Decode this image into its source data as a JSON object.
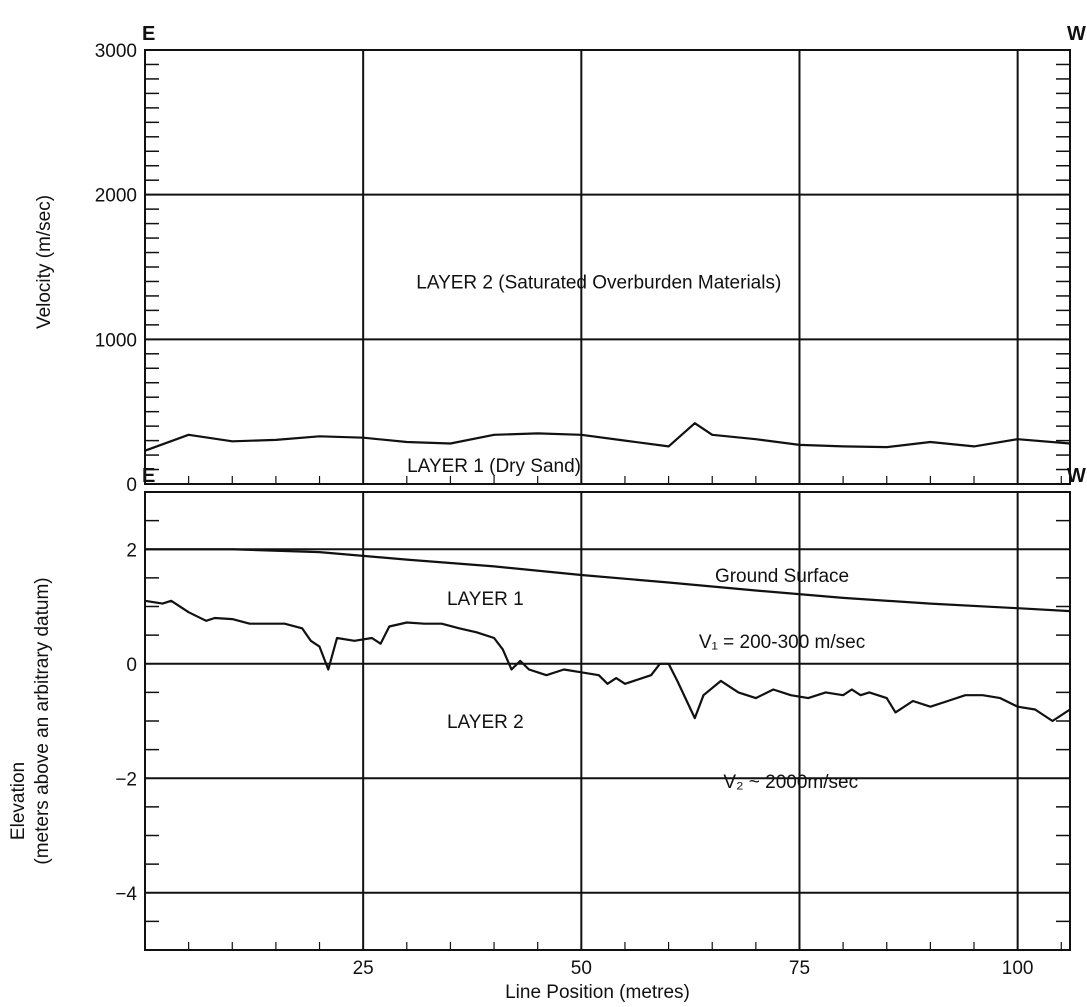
{
  "chart_data": [
    {
      "type": "line",
      "panel": "velocity",
      "ylabel": "Velocity (m/sec)",
      "xlim": [
        0,
        106
      ],
      "ylim": [
        0,
        3000
      ],
      "yticks": [
        0,
        1000,
        2000,
        3000
      ],
      "grid": true,
      "corner_left": "E",
      "corner_right": "W",
      "series": [
        {
          "x": [
            0,
            5,
            10,
            15,
            20,
            25,
            30,
            35,
            40,
            45,
            50,
            55,
            60,
            63,
            65,
            70,
            75,
            80,
            85,
            90,
            95,
            100,
            106
          ],
          "y": [
            230,
            340,
            295,
            305,
            330,
            320,
            290,
            280,
            340,
            350,
            340,
            300,
            260,
            420,
            340,
            310,
            270,
            260,
            255,
            290,
            260,
            310,
            280
          ]
        }
      ],
      "annotations": [
        {
          "text": "LAYER 2 (Saturated Overburden Materials)",
          "x": 52,
          "y": 1400
        },
        {
          "text": "LAYER 1 (Dry Sand)",
          "x": 40,
          "y": 130
        }
      ]
    },
    {
      "type": "line",
      "panel": "elevation",
      "xlabel": "Line Position (metres)",
      "ylabel": "Elevation",
      "ylabel2": "(meters above an arbitrary datum)",
      "xlim": [
        0,
        106
      ],
      "xticks": [
        25,
        50,
        75,
        100
      ],
      "ylim": [
        -5,
        3
      ],
      "yticks": [
        2,
        0,
        -2,
        -4
      ],
      "ytick_labels": [
        "2",
        "0",
        "−2",
        "−4"
      ],
      "grid": true,
      "corner_left": "E",
      "corner_right": "W",
      "series": [
        {
          "x": [
            0,
            10,
            20,
            30,
            40,
            50,
            60,
            70,
            80,
            90,
            100,
            106
          ],
          "y": [
            2.0,
            2.0,
            1.95,
            1.82,
            1.7,
            1.55,
            1.42,
            1.28,
            1.15,
            1.05,
            0.97,
            0.92
          ]
        },
        {
          "x": [
            0,
            2,
            3,
            5,
            7,
            8,
            10,
            12,
            14,
            16,
            18,
            19,
            20,
            21,
            22,
            24,
            26,
            27,
            28,
            30,
            32,
            34,
            36,
            38,
            40,
            41,
            42,
            43,
            44,
            45,
            46,
            48,
            50,
            52,
            53,
            54,
            55,
            57,
            58,
            59,
            60,
            61,
            63,
            64,
            66,
            68,
            70,
            72,
            74,
            76,
            78,
            80,
            81,
            82,
            83,
            85,
            86,
            88,
            90,
            92,
            94,
            96,
            98,
            100,
            102,
            104,
            106
          ],
          "y": [
            1.1,
            1.05,
            1.1,
            0.9,
            0.75,
            0.8,
            0.78,
            0.7,
            0.7,
            0.7,
            0.62,
            0.4,
            0.3,
            -0.1,
            0.45,
            0.4,
            0.45,
            0.35,
            0.65,
            0.72,
            0.7,
            0.7,
            0.62,
            0.55,
            0.45,
            0.25,
            -0.1,
            0.05,
            -0.1,
            -0.15,
            -0.2,
            -0.1,
            -0.15,
            -0.2,
            -0.35,
            -0.25,
            -0.35,
            -0.25,
            -0.2,
            0.0,
            0.0,
            -0.3,
            -0.95,
            -0.55,
            -0.3,
            -0.5,
            -0.6,
            -0.45,
            -0.55,
            -0.6,
            -0.5,
            -0.55,
            -0.45,
            -0.55,
            -0.5,
            -0.6,
            -0.85,
            -0.65,
            -0.75,
            -0.65,
            -0.55,
            -0.55,
            -0.6,
            -0.75,
            -0.8,
            -1.0,
            -0.8
          ]
        }
      ],
      "annotations": [
        {
          "text": "Ground Surface",
          "x": 73,
          "y": 1.55
        },
        {
          "text": "LAYER 1",
          "x": 39,
          "y": 1.15
        },
        {
          "text": "V₁ = 200-300 m/sec",
          "x": 73,
          "y": 0.4
        },
        {
          "text": "LAYER 2",
          "x": 39,
          "y": -1.0
        },
        {
          "text": "V₂ ~ 2000m/sec",
          "x": 74,
          "y": -2.05
        }
      ]
    }
  ]
}
